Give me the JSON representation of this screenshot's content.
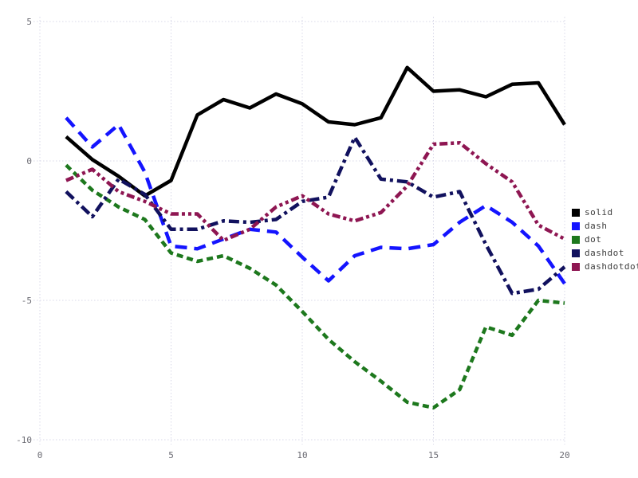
{
  "figure": {
    "background": "#ffffff",
    "grid_color": "#d8d8e8",
    "tick_label_color": "#6a6a72",
    "legend_text_color": "#3d3d3d"
  },
  "chart_data": {
    "type": "line",
    "title": "",
    "xlabel": "",
    "ylabel": "",
    "xlim": [
      0,
      20
    ],
    "ylim": [
      -10,
      5
    ],
    "xticks": [
      0,
      5,
      10,
      15,
      20
    ],
    "yticks": [
      5,
      0,
      -5,
      -10
    ],
    "grid": true,
    "grid_style": "dotted",
    "legend_position": "right-outside",
    "x": [
      1,
      2,
      3,
      4,
      5,
      6,
      7,
      8,
      9,
      10,
      11,
      12,
      13,
      14,
      15,
      16,
      17,
      18,
      19,
      20
    ],
    "series": [
      {
        "name": "solid",
        "color": "#000000",
        "line_style": "solid",
        "values": [
          0.87,
          0.05,
          -0.55,
          -1.25,
          -0.7,
          1.65,
          2.2,
          1.9,
          2.4,
          2.05,
          1.4,
          1.3,
          1.55,
          3.35,
          2.5,
          2.55,
          2.3,
          2.75,
          2.8,
          1.3
        ]
      },
      {
        "name": "dash",
        "color": "#1414ff",
        "line_style": "dash",
        "values": [
          1.55,
          0.5,
          1.3,
          -0.4,
          -3.05,
          -3.15,
          -2.8,
          -2.45,
          -2.55,
          -3.45,
          -4.3,
          -3.4,
          -3.1,
          -3.15,
          -3.0,
          -2.2,
          -1.6,
          -2.2,
          -3.05,
          -4.4
        ]
      },
      {
        "name": "dot",
        "color": "#1d781d",
        "line_style": "dot",
        "values": [
          -0.15,
          -1.05,
          -1.65,
          -2.1,
          -3.3,
          -3.6,
          -3.4,
          -3.85,
          -4.45,
          -5.4,
          -6.4,
          -7.2,
          -7.9,
          -8.65,
          -8.85,
          -8.2,
          -5.95,
          -6.25,
          -5.0,
          -5.1
        ]
      },
      {
        "name": "dashdot",
        "color": "#11115e",
        "line_style": "dashdot",
        "values": [
          -1.1,
          -2.0,
          -0.65,
          -1.2,
          -2.45,
          -2.45,
          -2.15,
          -2.2,
          -2.1,
          -1.45,
          -1.3,
          0.85,
          -0.65,
          -0.75,
          -1.3,
          -1.1,
          -3.0,
          -4.75,
          -4.6,
          -3.8
        ]
      },
      {
        "name": "dashdotdot",
        "color": "#8e1652",
        "line_style": "dashdotdot",
        "values": [
          -0.7,
          -0.3,
          -1.1,
          -1.45,
          -1.9,
          -1.9,
          -2.85,
          -2.45,
          -1.65,
          -1.25,
          -1.9,
          -2.15,
          -1.85,
          -0.9,
          0.6,
          0.65,
          -0.1,
          -0.75,
          -2.3,
          -2.8
        ]
      }
    ]
  }
}
